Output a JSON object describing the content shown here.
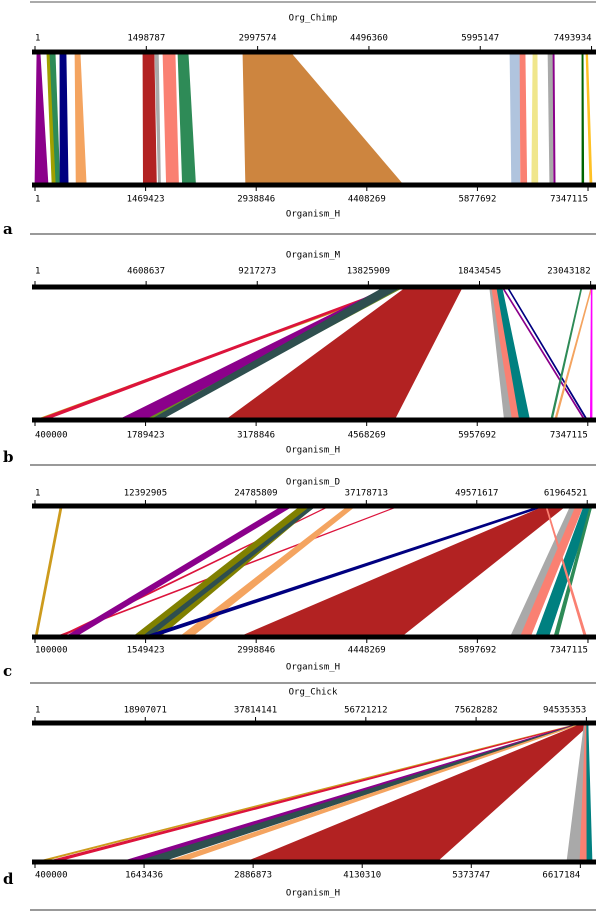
{
  "chart_data": [
    {
      "type": "synteny",
      "panel": "a",
      "top_label": "Org_Chimp",
      "bottom_label": "Organism_H",
      "top_xlim": [
        1,
        7500000
      ],
      "top_xticks": [
        1,
        1498787,
        2997574,
        4496360,
        5995147,
        7493934
      ],
      "bottom_xlim": [
        1,
        7400000
      ],
      "bottom_xticks": [
        1,
        1469423,
        2938846,
        4408269,
        5877692,
        7347115
      ],
      "links": [
        {
          "color": "#8b008b",
          "top": [
            27000,
            67000
          ],
          "bottom": [
            1,
            173000
          ]
        },
        {
          "color": "#a0a000",
          "top": [
            160000,
            200000
          ],
          "bottom": [
            227000,
            280000
          ]
        },
        {
          "color": "#2e8b57",
          "top": [
            200000,
            270000
          ],
          "bottom": [
            280000,
            330000
          ]
        },
        {
          "color": "#000080",
          "top": [
            336000,
            417000
          ],
          "bottom": [
            333000,
            440000
          ]
        },
        {
          "color": "#f4a460",
          "top": [
            539000,
            606000
          ],
          "bottom": [
            547000,
            680000
          ]
        },
        {
          "color": "#b22222",
          "top": [
            1454000,
            1602000
          ],
          "bottom": [
            1440000,
            1613000
          ]
        },
        {
          "color": "#a9a9a9",
          "top": [
            1615000,
            1660000
          ],
          "bottom": [
            1640000,
            1667000
          ]
        },
        {
          "color": "#fa8072",
          "top": [
            1723000,
            1885000
          ],
          "bottom": [
            1747000,
            1907000
          ]
        },
        {
          "color": "#2e8b57",
          "top": [
            1925000,
            2060000
          ],
          "bottom": [
            1960000,
            2133000
          ]
        },
        {
          "color": "#cd853f",
          "top": [
            2800000,
            3434000
          ],
          "bottom": [
            2800000,
            4893000
          ]
        },
        {
          "color": "#b0c4de",
          "top": [
            6396000,
            6531000
          ],
          "bottom": [
            6333000,
            6440000
          ]
        },
        {
          "color": "#fa8072",
          "top": [
            6531000,
            6598000
          ],
          "bottom": [
            6453000,
            6533000
          ]
        },
        {
          "color": "#f0e68c",
          "top": [
            6706000,
            6760000
          ],
          "bottom": [
            6600000,
            6680000
          ]
        },
        {
          "color": "#a9a9a9",
          "top": [
            6908000,
            6975000
          ],
          "bottom": [
            6840000,
            6880000
          ]
        },
        {
          "color": "#8b008b",
          "top": [
            6975000,
            6990000
          ],
          "bottom": [
            6893000,
            6910000
          ]
        },
        {
          "color": "#ffc125",
          "top": [
            7419000,
            7440000
          ],
          "bottom": [
            7373000,
            7400000
          ]
        },
        {
          "color": "#006400",
          "top": [
            7365000,
            7380000
          ],
          "bottom": [
            7267000,
            7290000
          ]
        }
      ]
    },
    {
      "type": "synteny",
      "panel": "b",
      "top_label": "Organism_M",
      "bottom_label": "Organism_H",
      "top_xlim": [
        1,
        23100000
      ],
      "top_xticks": [
        1,
        4608637,
        9217273,
        13825909,
        18434545,
        23043182
      ],
      "bottom_xlim": [
        400000,
        7400000
      ],
      "bottom_xticks": [
        400000,
        1789423,
        3178846,
        4568269,
        5957692,
        7347115
      ],
      "links": [
        {
          "color": "#cd9b1d",
          "top": [
            15084000,
            15294000
          ],
          "bottom": [
            400000,
            438000
          ]
        },
        {
          "color": "#dc143c",
          "top": [
            14900000,
            15084000
          ],
          "bottom": [
            425000,
            526000
          ]
        },
        {
          "color": "#8b008b",
          "top": [
            14581000,
            15084000
          ],
          "bottom": [
            1447000,
            1787000
          ]
        },
        {
          "color": "#6b8e23",
          "top": [
            15084000,
            15294000
          ],
          "bottom": [
            1787000,
            1913000
          ]
        },
        {
          "color": "#2f4f4f",
          "top": [
            14500000,
            15200000
          ],
          "bottom": [
            1850000,
            1976000
          ]
        },
        {
          "color": "#b22222",
          "top": [
            15419000,
            17724000
          ],
          "bottom": [
            2796000,
            4915000
          ]
        },
        {
          "color": "#a9a9a9",
          "top": [
            18856000,
            19066000
          ],
          "bottom": [
            6300000,
            6426000
          ]
        },
        {
          "color": "#fa8072",
          "top": [
            18940000,
            19150000
          ],
          "bottom": [
            6400000,
            6490000
          ]
        },
        {
          "color": "#008080",
          "top": [
            19150000,
            19360000
          ],
          "bottom": [
            6490000,
            6616000
          ]
        },
        {
          "color": "#000080",
          "top": [
            19570000,
            19610000
          ],
          "bottom": [
            7330000,
            7345000
          ]
        },
        {
          "color": "#8b008b",
          "top": [
            19360000,
            19400000
          ],
          "bottom": [
            7300000,
            7315000
          ]
        },
        {
          "color": "#2e8b57",
          "top": [
            22650000,
            22690000
          ],
          "bottom": [
            6880000,
            6900000
          ]
        },
        {
          "color": "#f4a460",
          "top": [
            23070000,
            23100000
          ],
          "bottom": [
            6930000,
            6950000
          ]
        },
        {
          "color": "#ff00ff",
          "top": [
            23070000,
            23100000
          ],
          "bottom": [
            7380000,
            7400000
          ]
        }
      ]
    },
    {
      "type": "synteny",
      "panel": "c",
      "top_label": "Organism_D",
      "bottom_label": "Organism_H",
      "top_xlim": [
        1,
        62500000
      ],
      "top_xticks": [
        1,
        12392905,
        24785809,
        37178713,
        49571617,
        61964521
      ],
      "bottom_xlim": [
        100000,
        7400000
      ],
      "bottom_xticks": [
        100000,
        1549423,
        2998846,
        4448269,
        5897692,
        7347115
      ],
      "links": [
        {
          "color": "#cd9b1d",
          "top": [
            2835000,
            3062000
          ],
          "bottom": [
            100000,
            126000
          ]
        },
        {
          "color": "#dc143c",
          "top": [
            40800000,
            40900000
          ],
          "bottom": [
            360000,
            400000
          ]
        },
        {
          "color": "#dc143c",
          "top": [
            33000000,
            33100000
          ],
          "bottom": [
            400000,
            440000
          ]
        },
        {
          "color": "#8b008b",
          "top": [
            27783000,
            28917000
          ],
          "bottom": [
            492000,
            622000
          ]
        },
        {
          "color": "#808000",
          "top": [
            29824000,
            31411000
          ],
          "bottom": [
            1380000,
            1732000
          ]
        },
        {
          "color": "#2f4f4f",
          "top": [
            31000000,
            31500000
          ],
          "bottom": [
            1500000,
            1600000
          ]
        },
        {
          "color": "#f4a460",
          "top": [
            35154000,
            35948000
          ],
          "bottom": [
            1993000,
            2150000
          ]
        },
        {
          "color": "#000080",
          "top": [
            56700000,
            57300000
          ],
          "bottom": [
            1510000,
            1640000
          ]
        },
        {
          "color": "#b22222",
          "top": [
            57267000,
            59535000
          ],
          "bottom": [
            2777000,
            4892000
          ]
        },
        {
          "color": "#a9a9a9",
          "top": [
            60100000,
            61200000
          ],
          "bottom": [
            6330000,
            6530000
          ]
        },
        {
          "color": "#fa8072",
          "top": [
            60700000,
            61500000
          ],
          "bottom": [
            6460000,
            6590000
          ]
        },
        {
          "color": "#008080",
          "top": [
            61600000,
            62500000
          ],
          "bottom": [
            6660000,
            6830000
          ]
        },
        {
          "color": "#2e8b57",
          "top": [
            62300000,
            62500000
          ],
          "bottom": [
            6900000,
            6950000
          ]
        },
        {
          "color": "#fa8072",
          "top": [
            57300000,
            57400000
          ],
          "bottom": [
            7300000,
            7330000
          ]
        }
      ]
    },
    {
      "type": "synteny",
      "panel": "d",
      "top_label": "Org_Chick",
      "bottom_label": "Organism_H",
      "top_xlim": [
        1,
        95500000
      ],
      "top_xticks": [
        1,
        18907071,
        37814141,
        56721212,
        75628282,
        94535353
      ],
      "bottom_xlim": [
        400000,
        6750000
      ],
      "bottom_xticks": [
        400000,
        1643436,
        2886873,
        4130310,
        5373747,
        6617184
      ],
      "links": [
        {
          "color": "#cd9b1d",
          "top": [
            93700000,
            93900000
          ],
          "bottom": [
            400000,
            457000
          ]
        },
        {
          "color": "#dc143c",
          "top": [
            93900000,
            94000000
          ],
          "bottom": [
            514000,
            629000
          ]
        },
        {
          "color": "#8b008b",
          "top": [
            93582000,
            93755000
          ],
          "bottom": [
            1373000,
            1544000
          ]
        },
        {
          "color": "#2f4f4f",
          "top": [
            93755000,
            93900000
          ],
          "bottom": [
            1544000,
            1830000
          ]
        },
        {
          "color": "#f4a460",
          "top": [
            93900000,
            94100000
          ],
          "bottom": [
            1887000,
            2060000
          ]
        },
        {
          "color": "#b22222",
          "top": [
            94102000,
            95316000
          ],
          "bottom": [
            2803000,
            4976000
          ]
        },
        {
          "color": "#a9a9a9",
          "top": [
            94200000,
            94400000
          ],
          "bottom": [
            6464000,
            6613000
          ]
        },
        {
          "color": "#fa8072",
          "top": [
            94400000,
            94600000
          ],
          "bottom": [
            6613000,
            6693000
          ]
        },
        {
          "color": "#008080",
          "top": [
            94600000,
            94800000
          ],
          "bottom": [
            6693000,
            6750000
          ]
        }
      ]
    }
  ]
}
